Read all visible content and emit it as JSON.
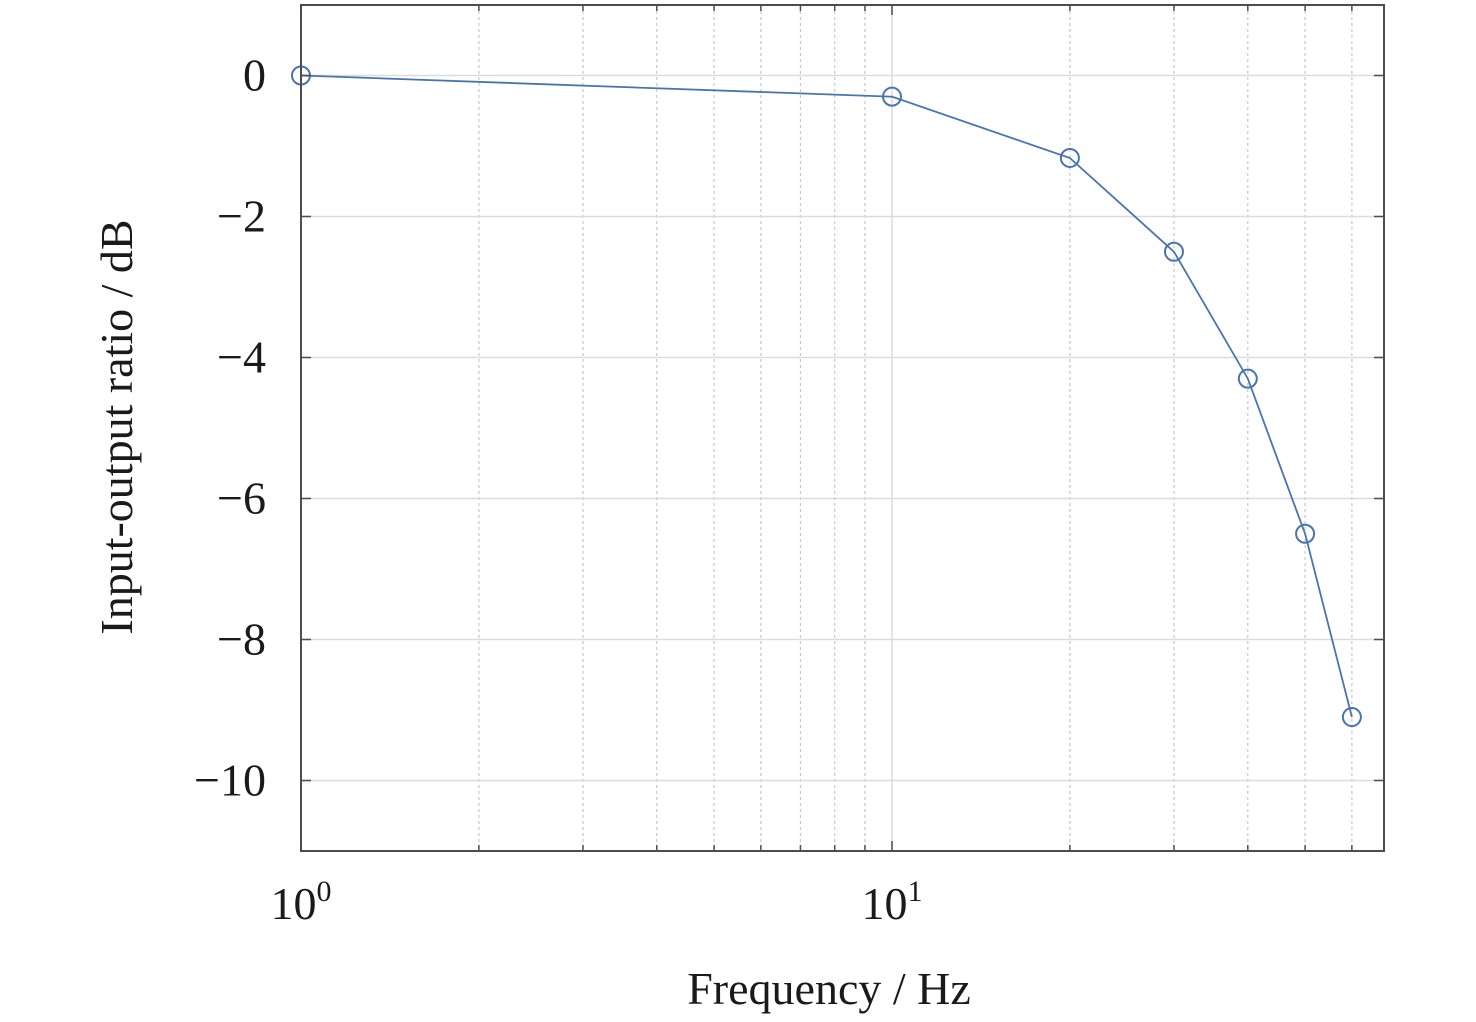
{
  "chart_data": {
    "type": "line",
    "xscale": "log",
    "xlim": [
      1,
      68
    ],
    "ylim": [
      -11,
      1
    ],
    "xlabel": "Frequency / Hz",
    "ylabel": "Input-output ratio / dB",
    "grid": true,
    "minor_grid_x": true,
    "marker": "circle",
    "series_color": "#4a74b0",
    "x_ticks": [
      {
        "value": 1,
        "base": "10",
        "exp": "0"
      },
      {
        "value": 10,
        "base": "10",
        "exp": "1"
      }
    ],
    "y_ticks": [
      {
        "value": 0,
        "label": "0"
      },
      {
        "value": -2,
        "label": "−2"
      },
      {
        "value": -4,
        "label": "−4"
      },
      {
        "value": -6,
        "label": "−6"
      },
      {
        "value": -8,
        "label": "−8"
      },
      {
        "value": -10,
        "label": "−10"
      }
    ],
    "series": [
      {
        "x": [
          1,
          10,
          20,
          30,
          40,
          50,
          60
        ],
        "y": [
          0,
          -0.3,
          -1.17,
          -2.5,
          -4.3,
          -6.5,
          -9.1
        ]
      }
    ]
  }
}
